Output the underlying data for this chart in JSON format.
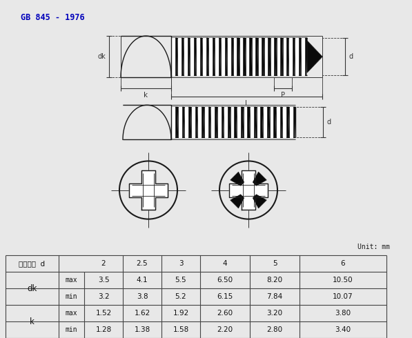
{
  "title": "GB 845 - 1976",
  "title_color": "#0000BB",
  "bg_color": "#E8E8E8",
  "unit_text": "Unit: mm",
  "table_header": [
    "螺纹规格  d",
    "2",
    "2.5",
    "3",
    "4",
    "5",
    "6"
  ],
  "row_labels": [
    "dk",
    "k"
  ],
  "sub_labels": [
    "max",
    "min",
    "max",
    "min"
  ],
  "table_data": [
    [
      "3.5",
      "4.1",
      "5.5",
      "6.50",
      "8.20",
      "10.50"
    ],
    [
      "3.2",
      "3.8",
      "5.2",
      "6.15",
      "7.84",
      "10.07"
    ],
    [
      "1.52",
      "1.62",
      "1.92",
      "2.60",
      "3.20",
      "3.80"
    ],
    [
      "1.28",
      "1.38",
      "1.58",
      "2.20",
      "2.80",
      "3.40"
    ]
  ],
  "line_color": "#1a1a1a",
  "dim_color": "#333333",
  "thread_color": "#111111",
  "table_line_color": "#444444"
}
